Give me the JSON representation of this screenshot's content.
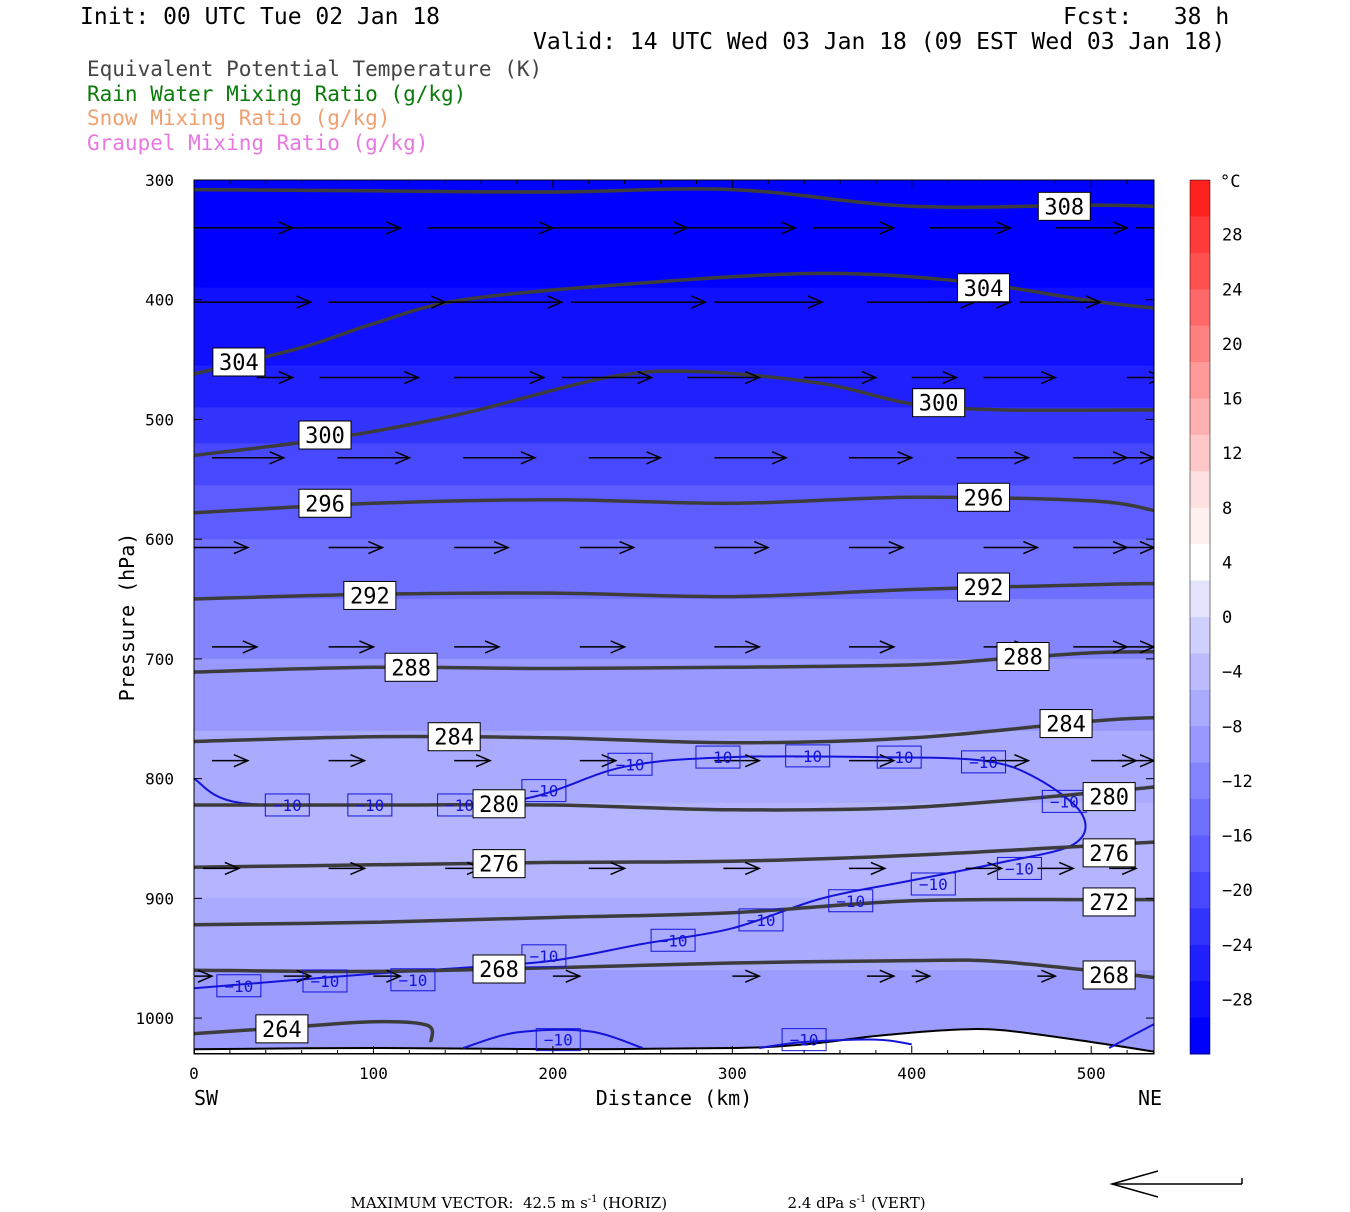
{
  "header": {
    "init": "Init: 00 UTC Tue 02 Jan 18",
    "fcst": "Fcst:   38 h",
    "valid": "Valid: 14 UTC Wed 03 Jan 18 (09 EST Wed 03 Jan 18)"
  },
  "legend_lines": [
    {
      "text": "Equivalent Potential Temperature (K)",
      "color": "#444444"
    },
    {
      "text": "Rain Water Mixing Ratio (g/kg)",
      "color": "#0a7a0a"
    },
    {
      "text": "Snow Mixing Ratio (g/kg)",
      "color": "#f0a070"
    },
    {
      "text": "Graupel Mixing Ratio (g/kg)",
      "color": "#e878e0"
    }
  ],
  "footer": {
    "max_vector": "MAXIMUM VECTOR:",
    "horiz_value": "42.5 m s",
    "horiz_exp": "-1",
    "horiz_label": "(HORIZ)",
    "vert_value": "2.4 dPa s",
    "vert_exp": "-1",
    "vert_label": "(VERT)"
  },
  "chart_data": {
    "type": "cross-section",
    "xlabel": "Distance (km)",
    "ylabel": "Pressure (hPa)",
    "x_left_label": "SW",
    "x_right_label": "NE",
    "xlim": [
      0,
      535
    ],
    "ylim": [
      300,
      1030
    ],
    "y_inverted": true,
    "x_ticks": [
      0,
      100,
      200,
      300,
      400,
      500
    ],
    "y_ticks": [
      300,
      400,
      500,
      600,
      700,
      800,
      900,
      1000
    ],
    "colorbar": {
      "unit": "°C",
      "levels": [
        28,
        24,
        20,
        16,
        12,
        8,
        4,
        0,
        -4,
        -8,
        -12,
        -16,
        -20,
        -24,
        -28
      ],
      "level_labels": [
        "28",
        "24",
        "20",
        "16",
        "12",
        "8",
        "4",
        "0",
        "−4",
        "−8",
        "−12",
        "−16",
        "−20",
        "−24",
        "−28"
      ],
      "top": 32,
      "bottom": -32,
      "colors_top_to_bottom": [
        "#ff2020",
        "#ff3a3a",
        "#ff5050",
        "#ff6868",
        "#ff8080",
        "#ff9a9a",
        "#ffb0b0",
        "#ffc8c8",
        "#ffe0e0",
        "#fff0f0",
        "#ffffff",
        "#e4e4ff",
        "#d0d0ff",
        "#bcbcff",
        "#aaaaff",
        "#9898ff",
        "#8484ff",
        "#7070ff",
        "#5c5cff",
        "#4848ff",
        "#3434ff",
        "#2020ff",
        "#1010ff",
        "#0000ff"
      ]
    },
    "temperature_bands": [
      {
        "p_top": 300,
        "p_bottom": 390,
        "temp": -32,
        "color": "#0000ff"
      },
      {
        "p_top": 390,
        "p_bottom": 455,
        "temp": -30,
        "color": "#1010ff"
      },
      {
        "p_top": 455,
        "p_bottom": 490,
        "temp": -28,
        "color": "#2020ff"
      },
      {
        "p_top": 490,
        "p_bottom": 520,
        "temp": -26,
        "color": "#3434ff"
      },
      {
        "p_top": 520,
        "p_bottom": 555,
        "temp": -24,
        "color": "#4848ff"
      },
      {
        "p_top": 555,
        "p_bottom": 600,
        "temp": -22,
        "color": "#5c5cff"
      },
      {
        "p_top": 600,
        "p_bottom": 650,
        "temp": -20,
        "color": "#7070ff"
      },
      {
        "p_top": 650,
        "p_bottom": 700,
        "temp": -18,
        "color": "#8484ff"
      },
      {
        "p_top": 700,
        "p_bottom": 760,
        "temp": -16,
        "color": "#9898ff"
      },
      {
        "p_top": 760,
        "p_bottom": 820,
        "temp": -14,
        "color": "#aaaaff"
      },
      {
        "p_top": 820,
        "p_bottom": 900,
        "temp": -12,
        "color": "#b4b4ff"
      },
      {
        "p_top": 900,
        "p_bottom": 960,
        "temp": -11,
        "color": "#aaaaff"
      },
      {
        "p_top": 960,
        "p_bottom": 1030,
        "temp": -13,
        "color": "#9c9cff"
      }
    ],
    "theta_e_contours": [
      {
        "value": 308,
        "points": [
          [
            0,
            308
          ],
          [
            100,
            309
          ],
          [
            200,
            310
          ],
          [
            300,
            308
          ],
          [
            400,
            322
          ],
          [
            500,
            321
          ],
          [
            535,
            322
          ]
        ],
        "labels": [
          [
            485,
            322
          ]
        ]
      },
      {
        "value": 304,
        "points": [
          [
            0,
            462
          ],
          [
            60,
            440
          ],
          [
            100,
            420
          ],
          [
            150,
            400
          ],
          [
            250,
            386
          ],
          [
            350,
            378
          ],
          [
            430,
            385
          ],
          [
            500,
            401
          ],
          [
            535,
            407
          ]
        ],
        "labels": [
          [
            25,
            452
          ],
          [
            440,
            390
          ]
        ]
      },
      {
        "value": 300,
        "points": [
          [
            0,
            530
          ],
          [
            80,
            515
          ],
          [
            150,
            495
          ],
          [
            230,
            465
          ],
          [
            280,
            460
          ],
          [
            350,
            470
          ],
          [
            400,
            487
          ],
          [
            450,
            492
          ],
          [
            535,
            492
          ]
        ],
        "labels": [
          [
            73,
            513
          ],
          [
            415,
            486
          ]
        ]
      },
      {
        "value": 296,
        "points": [
          [
            0,
            578
          ],
          [
            100,
            570
          ],
          [
            200,
            567
          ],
          [
            300,
            570
          ],
          [
            400,
            565
          ],
          [
            500,
            568
          ],
          [
            535,
            576
          ]
        ],
        "labels": [
          [
            73,
            570
          ],
          [
            440,
            565
          ]
        ]
      },
      {
        "value": 292,
        "points": [
          [
            0,
            650
          ],
          [
            100,
            646
          ],
          [
            200,
            645
          ],
          [
            300,
            648
          ],
          [
            400,
            642
          ],
          [
            500,
            638
          ],
          [
            535,
            637
          ]
        ],
        "labels": [
          [
            98,
            647
          ],
          [
            440,
            640
          ]
        ]
      },
      {
        "value": 288,
        "points": [
          [
            0,
            711
          ],
          [
            100,
            707
          ],
          [
            200,
            708
          ],
          [
            300,
            707
          ],
          [
            400,
            705
          ],
          [
            450,
            700
          ],
          [
            500,
            695
          ],
          [
            535,
            694
          ]
        ],
        "labels": [
          [
            121,
            707
          ],
          [
            462,
            698
          ]
        ]
      },
      {
        "value": 284,
        "points": [
          [
            0,
            769
          ],
          [
            100,
            765
          ],
          [
            200,
            766
          ],
          [
            300,
            770
          ],
          [
            400,
            766
          ],
          [
            500,
            752
          ],
          [
            535,
            749
          ]
        ],
        "labels": [
          [
            145,
            765
          ],
          [
            486,
            754
          ]
        ]
      },
      {
        "value": 280,
        "points": [
          [
            0,
            822
          ],
          [
            100,
            822
          ],
          [
            200,
            822
          ],
          [
            300,
            826
          ],
          [
            400,
            824
          ],
          [
            500,
            812
          ],
          [
            535,
            807
          ]
        ],
        "labels": [
          [
            170,
            821
          ],
          [
            510,
            815
          ]
        ]
      },
      {
        "value": 276,
        "points": [
          [
            0,
            874
          ],
          [
            100,
            872
          ],
          [
            200,
            870
          ],
          [
            300,
            869
          ],
          [
            400,
            864
          ],
          [
            500,
            856
          ],
          [
            535,
            853
          ]
        ],
        "labels": [
          [
            170,
            871
          ],
          [
            510,
            862
          ]
        ]
      },
      {
        "value": 272,
        "points": [
          [
            0,
            922
          ],
          [
            100,
            920
          ],
          [
            200,
            916
          ],
          [
            300,
            912
          ],
          [
            400,
            902
          ],
          [
            500,
            901
          ],
          [
            535,
            901
          ]
        ],
        "labels": [
          [
            510,
            903
          ]
        ]
      },
      {
        "value": 268,
        "points": [
          [
            0,
            960
          ],
          [
            100,
            961
          ],
          [
            200,
            958
          ],
          [
            300,
            954
          ],
          [
            400,
            952
          ],
          [
            450,
            953
          ],
          [
            535,
            966
          ]
        ],
        "labels": [
          [
            170,
            959
          ],
          [
            510,
            964
          ]
        ]
      },
      {
        "value": 264,
        "points": [
          [
            0,
            1013
          ],
          [
            50,
            1008
          ],
          [
            100,
            1003
          ],
          [
            130,
            1006
          ],
          [
            132,
            1020
          ]
        ],
        "labels": [
          [
            49,
            1009
          ]
        ]
      }
    ],
    "temperature_contours": [
      {
        "value": -10,
        "points": [
          [
            0,
            800
          ],
          [
            25,
            820
          ],
          [
            100,
            822
          ],
          [
            180,
            818
          ],
          [
            240,
            790
          ],
          [
            300,
            782
          ],
          [
            380,
            782
          ],
          [
            440,
            785
          ],
          [
            470,
            800
          ],
          [
            495,
            830
          ],
          [
            490,
            855
          ],
          [
            450,
            870
          ],
          [
            400,
            885
          ],
          [
            350,
            900
          ],
          [
            300,
            925
          ],
          [
            250,
            938
          ],
          [
            200,
            952
          ],
          [
            150,
            958
          ],
          [
            100,
            963
          ],
          [
            0,
            975
          ]
        ],
        "labels": [
          [
            52,
            822
          ],
          [
            98,
            822
          ],
          [
            148,
            822
          ],
          [
            195,
            810
          ],
          [
            243,
            788
          ],
          [
            292,
            782
          ],
          [
            342,
            781
          ],
          [
            393,
            782
          ],
          [
            440,
            786
          ],
          [
            485,
            819
          ],
          [
            366,
            902
          ],
          [
            412,
            888
          ],
          [
            460,
            875
          ],
          [
            267,
            935
          ],
          [
            316,
            918
          ],
          [
            195,
            948
          ],
          [
            25,
            973
          ],
          [
            73,
            969
          ],
          [
            122,
            968
          ]
        ]
      },
      {
        "value": -10,
        "points": [
          [
            150,
            1025
          ],
          [
            180,
            1012
          ],
          [
            220,
            1011
          ],
          [
            250,
            1025
          ]
        ],
        "labels": [
          [
            203,
            1018
          ]
        ]
      },
      {
        "value": -10,
        "points": [
          [
            315,
            1025
          ],
          [
            340,
            1020
          ],
          [
            380,
            1018
          ],
          [
            400,
            1022
          ]
        ],
        "labels": [
          [
            340,
            1018
          ]
        ]
      },
      {
        "value": -10,
        "points": [
          [
            510,
            1025
          ],
          [
            535,
            1005
          ]
        ],
        "labels": []
      }
    ],
    "wind_vector_rows": [
      {
        "p": 340,
        "x": [
          0,
          55,
          130,
          200,
          270,
          345,
          410,
          480,
          525
        ],
        "len": [
          55,
          60,
          70,
          75,
          65,
          45,
          45,
          40,
          25
        ]
      },
      {
        "p": 402,
        "x": [
          0,
          75,
          140,
          210,
          290,
          375,
          410,
          460,
          535
        ],
        "len": [
          65,
          65,
          65,
          75,
          60,
          60,
          45,
          45,
          35
        ]
      },
      {
        "p": 465,
        "x": [
          35,
          70,
          145,
          205,
          275,
          340,
          400,
          440,
          520
        ],
        "len": [
          20,
          55,
          50,
          50,
          40,
          40,
          25,
          40,
          20
        ]
      },
      {
        "p": 532,
        "x": [
          10,
          80,
          150,
          220,
          290,
          365,
          425,
          490,
          510
        ],
        "len": [
          40,
          40,
          40,
          40,
          40,
          35,
          40,
          30,
          25
        ]
      },
      {
        "p": 607,
        "x": [
          0,
          75,
          145,
          215,
          290,
          365,
          440,
          490,
          515
        ],
        "len": [
          30,
          30,
          30,
          30,
          30,
          30,
          30,
          30,
          20
        ]
      },
      {
        "p": 690,
        "x": [
          10,
          75,
          145,
          215,
          290,
          365,
          440,
          490,
          515
        ],
        "len": [
          25,
          25,
          25,
          25,
          25,
          25,
          25,
          30,
          20
        ]
      },
      {
        "p": 785,
        "x": [
          10,
          75,
          145,
          215,
          290,
          365,
          440,
          500,
          515
        ],
        "len": [
          20,
          20,
          20,
          20,
          25,
          25,
          25,
          25,
          20
        ]
      },
      {
        "p": 875,
        "x": [
          5,
          75,
          140,
          220,
          295,
          365,
          430,
          470,
          510
        ],
        "len": [
          20,
          20,
          20,
          20,
          20,
          20,
          20,
          20,
          15
        ]
      },
      {
        "p": 965,
        "x": [
          0,
          50,
          100,
          200,
          300,
          375,
          400,
          470,
          510
        ],
        "len": [
          10,
          15,
          15,
          15,
          15,
          15,
          10,
          10,
          10
        ]
      }
    ],
    "terrain": [
      [
        0,
        1026
      ],
      [
        100,
        1025
      ],
      [
        200,
        1026
      ],
      [
        300,
        1025
      ],
      [
        340,
        1022
      ],
      [
        380,
        1015
      ],
      [
        420,
        1010
      ],
      [
        450,
        1010
      ],
      [
        500,
        1020
      ],
      [
        535,
        1028
      ]
    ]
  }
}
